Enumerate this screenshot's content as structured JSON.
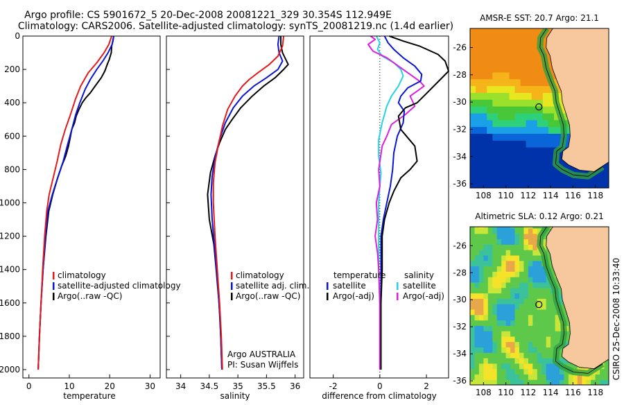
{
  "header": {
    "line1": "Argo profile: CS 5901672_5 20-Dec-2008 20081221_329 30.354S 112.949E",
    "line2": "Climatology: CARS2006. Satellite-adjusted climatology: synTS_20081219.nc (1.4d earlier)"
  },
  "side_label": "CSIRO 25-Dec-2008 10:33:40",
  "colors": {
    "climatology": "#e31a1c",
    "satellite": "#0a14d6",
    "argo": "#000000",
    "sat_diff": "#22d3e6",
    "argo_diff": "#e01ee0",
    "land": "#f7c79d"
  },
  "chart_data": [
    {
      "type": "line",
      "xlabel": "temperature",
      "ylim": [
        2050,
        0
      ],
      "xlim": [
        -1.5,
        32.5
      ],
      "xticks": [
        "0",
        "10",
        "20",
        "30"
      ],
      "yticks": [
        "0",
        "200",
        "400",
        "600",
        "800",
        "1000",
        "1200",
        "1400",
        "1600",
        "1800",
        "2000"
      ],
      "legend": [
        "climatology",
        "satellite-adjusted climatology",
        "Argo(..raw -QC)"
      ],
      "series": [
        {
          "name": "climatology",
          "color": "climatology",
          "points": [
            [
              20.5,
              0
            ],
            [
              19.8,
              50
            ],
            [
              18.6,
              100
            ],
            [
              16.8,
              160
            ],
            [
              14.7,
              220
            ],
            [
              12.8,
              300
            ],
            [
              11.5,
              380
            ],
            [
              10.3,
              470
            ],
            [
              9.0,
              560
            ],
            [
              7.9,
              650
            ],
            [
              7.0,
              750
            ],
            [
              6.0,
              850
            ],
            [
              5.0,
              950
            ],
            [
              4.4,
              1050
            ],
            [
              3.9,
              1200
            ],
            [
              3.4,
              1400
            ],
            [
              3.0,
              1600
            ],
            [
              2.6,
              1800
            ],
            [
              2.3,
              2000
            ]
          ]
        },
        {
          "name": "satellite-adjusted climatology",
          "color": "satellite",
          "points": [
            [
              21.0,
              0
            ],
            [
              20.6,
              50
            ],
            [
              19.6,
              100
            ],
            [
              18.3,
              150
            ],
            [
              16.8,
              200
            ],
            [
              15.2,
              260
            ],
            [
              13.9,
              320
            ],
            [
              12.6,
              400
            ],
            [
              11.6,
              470
            ],
            [
              10.6,
              560
            ],
            [
              9.6,
              650
            ],
            [
              8.5,
              750
            ],
            [
              7.1,
              850
            ],
            [
              5.8,
              950
            ],
            [
              4.7,
              1050
            ],
            [
              4.1,
              1200
            ],
            [
              3.5,
              1400
            ],
            [
              3.0,
              1600
            ],
            [
              2.6,
              1800
            ],
            [
              2.3,
              2000
            ]
          ]
        },
        {
          "name": "Argo(..raw -QC)",
          "color": "argo",
          "points": [
            [
              21.0,
              0
            ],
            [
              20.8,
              30
            ],
            [
              20.5,
              60
            ],
            [
              20.4,
              100
            ],
            [
              19.9,
              140
            ],
            [
              19.4,
              170
            ],
            [
              18.8,
              210
            ],
            [
              17.9,
              250
            ],
            [
              16.4,
              300
            ],
            [
              15.2,
              340
            ],
            [
              14.1,
              370
            ],
            [
              13.2,
              400
            ],
            [
              12.4,
              440
            ],
            [
              11.7,
              480
            ],
            [
              11.3,
              520
            ],
            [
              10.6,
              560
            ],
            [
              10.3,
              600
            ],
            [
              9.8,
              660
            ],
            [
              9.1,
              720
            ],
            [
              8.1,
              780
            ],
            [
              7.0,
              860
            ],
            [
              5.9,
              950
            ],
            [
              4.9,
              1050
            ],
            [
              4.2,
              1200
            ],
            [
              3.5,
              1400
            ],
            [
              3.0,
              1600
            ],
            [
              2.6,
              1800
            ],
            [
              2.3,
              2000
            ]
          ]
        }
      ]
    },
    {
      "type": "line",
      "xlabel": "salinity",
      "ylim": [
        2050,
        0
      ],
      "xlim": [
        33.75,
        36.15
      ],
      "xticks": [
        "34",
        "34.5",
        "35",
        "35.5",
        "36"
      ],
      "legend": [
        "climatology",
        "satellite adj. clim.",
        "Argo(..raw -QC)"
      ],
      "annotation": [
        "Argo AUSTRALIA",
        "PI: Susan Wijffels"
      ],
      "series": [
        {
          "name": "climatology",
          "color": "climatology",
          "points": [
            [
              35.8,
              0
            ],
            [
              35.78,
              60
            ],
            [
              35.7,
              120
            ],
            [
              35.55,
              170
            ],
            [
              35.35,
              220
            ],
            [
              35.2,
              260
            ],
            [
              35.08,
              300
            ],
            [
              34.95,
              360
            ],
            [
              34.82,
              440
            ],
            [
              34.73,
              540
            ],
            [
              34.66,
              650
            ],
            [
              34.6,
              760
            ],
            [
              34.57,
              880
            ],
            [
              34.57,
              1000
            ],
            [
              34.6,
              1200
            ],
            [
              34.64,
              1400
            ],
            [
              34.68,
              1600
            ],
            [
              34.71,
              1800
            ],
            [
              34.73,
              2000
            ]
          ]
        },
        {
          "name": "satellite adj. clim.",
          "color": "satellite",
          "points": [
            [
              35.72,
              0
            ],
            [
              35.7,
              50
            ],
            [
              35.72,
              100
            ],
            [
              35.78,
              150
            ],
            [
              35.7,
              200
            ],
            [
              35.5,
              250
            ],
            [
              35.28,
              300
            ],
            [
              35.08,
              360
            ],
            [
              34.92,
              430
            ],
            [
              34.78,
              520
            ],
            [
              34.68,
              620
            ],
            [
              34.6,
              730
            ],
            [
              34.55,
              840
            ],
            [
              34.53,
              950
            ],
            [
              34.55,
              1100
            ],
            [
              34.6,
              1300
            ],
            [
              34.65,
              1500
            ],
            [
              34.69,
              1700
            ],
            [
              34.72,
              2000
            ]
          ]
        },
        {
          "name": "Argo(..raw -QC)",
          "color": "argo",
          "points": [
            [
              35.75,
              0
            ],
            [
              35.75,
              50
            ],
            [
              35.78,
              100
            ],
            [
              35.85,
              150
            ],
            [
              35.88,
              170
            ],
            [
              35.8,
              200
            ],
            [
              35.65,
              250
            ],
            [
              35.45,
              300
            ],
            [
              35.25,
              360
            ],
            [
              35.05,
              430
            ],
            [
              34.9,
              500
            ],
            [
              34.78,
              560
            ],
            [
              34.68,
              640
            ],
            [
              34.6,
              720
            ],
            [
              34.52,
              820
            ],
            [
              34.47,
              950
            ],
            [
              34.5,
              1100
            ],
            [
              34.58,
              1250
            ],
            [
              34.62,
              1400
            ],
            [
              34.67,
              1600
            ],
            [
              34.7,
              1800
            ],
            [
              34.72,
              2000
            ]
          ]
        }
      ]
    },
    {
      "type": "line",
      "xlabel": "difference from climatology",
      "ylim": [
        2050,
        0
      ],
      "xlim": [
        -3.0,
        2.95
      ],
      "xticks": [
        "-2",
        "0",
        "2"
      ],
      "legend_headers": [
        "temperature",
        "salinity"
      ],
      "legend": [
        "satellite",
        "Argo(-adj)",
        "satellite",
        "Argo(-adj)"
      ],
      "series": [
        {
          "name": "satellite",
          "group": "temperature",
          "color": "satellite",
          "points": [
            [
              0.2,
              0
            ],
            [
              0.35,
              40
            ],
            [
              0.6,
              80
            ],
            [
              1.0,
              130
            ],
            [
              1.5,
              180
            ],
            [
              1.8,
              230
            ],
            [
              1.75,
              270
            ],
            [
              1.2,
              310
            ],
            [
              0.9,
              360
            ],
            [
              0.8,
              400
            ],
            [
              1.05,
              450
            ],
            [
              1.0,
              520
            ],
            [
              0.75,
              600
            ],
            [
              0.6,
              700
            ],
            [
              0.55,
              800
            ],
            [
              0.45,
              900
            ],
            [
              0.3,
              1000
            ],
            [
              0.15,
              1100
            ],
            [
              0.05,
              1200
            ],
            [
              0.05,
              1400
            ],
            [
              0.05,
              1600
            ],
            [
              0.05,
              1800
            ],
            [
              0.05,
              2000
            ]
          ]
        },
        {
          "name": "Argo(-adj)",
          "group": "temperature",
          "color": "argo",
          "points": [
            [
              0.4,
              0
            ],
            [
              1.0,
              30
            ],
            [
              1.7,
              60
            ],
            [
              2.5,
              110
            ],
            [
              2.8,
              150
            ],
            [
              2.95,
              210
            ],
            [
              2.6,
              260
            ],
            [
              2.1,
              330
            ],
            [
              1.6,
              400
            ],
            [
              1.1,
              430
            ],
            [
              0.8,
              480
            ],
            [
              0.9,
              560
            ],
            [
              1.5,
              660
            ],
            [
              1.6,
              750
            ],
            [
              1.3,
              800
            ],
            [
              0.9,
              850
            ],
            [
              0.6,
              930
            ],
            [
              0.4,
              1000
            ],
            [
              0.2,
              1100
            ],
            [
              0.1,
              1200
            ],
            [
              0.1,
              1400
            ],
            [
              0.05,
              1600
            ],
            [
              0.05,
              1800
            ],
            [
              0.05,
              2000
            ]
          ]
        },
        {
          "name": "satellite",
          "group": "salinity",
          "color": "sat_diff",
          "points": [
            [
              -0.15,
              0
            ],
            [
              0.0,
              40
            ],
            [
              -0.1,
              80
            ],
            [
              0.1,
              120
            ],
            [
              0.6,
              160
            ],
            [
              0.9,
              200
            ],
            [
              1.0,
              240
            ],
            [
              0.8,
              300
            ],
            [
              0.5,
              360
            ],
            [
              0.3,
              420
            ],
            [
              0.1,
              520
            ],
            [
              -0.05,
              620
            ],
            [
              -0.05,
              720
            ],
            [
              0.05,
              820
            ],
            [
              0.0,
              900
            ],
            [
              -0.05,
              1000
            ],
            [
              -0.05,
              1200
            ],
            [
              -0.05,
              1400
            ],
            [
              0.0,
              1600
            ],
            [
              0.0,
              1800
            ],
            [
              0.0,
              2000
            ]
          ]
        },
        {
          "name": "Argo(-adj)",
          "group": "salinity",
          "color": "argo_diff",
          "points": [
            [
              -0.4,
              0
            ],
            [
              -0.2,
              20
            ],
            [
              -0.5,
              50
            ],
            [
              -0.3,
              90
            ],
            [
              0.3,
              130
            ],
            [
              0.8,
              180
            ],
            [
              1.3,
              230
            ],
            [
              1.7,
              270
            ],
            [
              1.9,
              300
            ],
            [
              1.6,
              330
            ],
            [
              1.3,
              360
            ],
            [
              1.5,
              420
            ],
            [
              1.1,
              470
            ],
            [
              0.5,
              530
            ],
            [
              0.3,
              600
            ],
            [
              0.1,
              660
            ],
            [
              -0.05,
              800
            ],
            [
              0.0,
              900
            ],
            [
              -0.15,
              1000
            ],
            [
              -0.1,
              1100
            ],
            [
              -0.2,
              1200
            ],
            [
              -0.1,
              1300
            ],
            [
              -0.05,
              1400
            ],
            [
              0.0,
              1600
            ],
            [
              0.0,
              1800
            ],
            [
              0.0,
              2000
            ]
          ]
        }
      ]
    },
    {
      "type": "heatmap",
      "title": "AMSR-E SST: 20.7 Argo: 21.1",
      "xlim": [
        106.8,
        119.2
      ],
      "ylim": [
        -36.3,
        -24.6
      ],
      "xticks": [
        "108",
        "110",
        "112",
        "114",
        "116",
        "118"
      ],
      "yticks": [
        "-26",
        "-28",
        "-30",
        "-32",
        "-34",
        "-36"
      ],
      "argo_position": [
        112.949,
        -30.354
      ]
    },
    {
      "type": "heatmap",
      "title": "Altimetric SLA: 0.12 Argo: 0.21",
      "xlim": [
        106.8,
        119.2
      ],
      "ylim": [
        -36.3,
        -24.6
      ],
      "xticks": [
        "108",
        "110",
        "112",
        "114",
        "116",
        "118"
      ],
      "yticks": [
        "-26",
        "-28",
        "-30",
        "-32",
        "-34",
        "-36"
      ],
      "argo_position": [
        112.949,
        -30.354
      ]
    }
  ]
}
